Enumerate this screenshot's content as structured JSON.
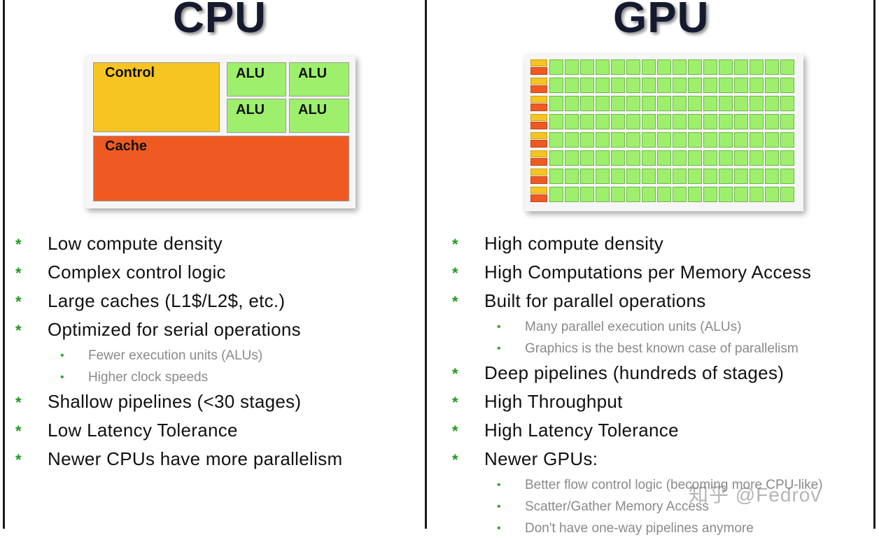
{
  "cpu": {
    "title": "CPU",
    "blocks": {
      "control": "Control",
      "alu": "ALU",
      "cache": "Cache"
    },
    "bullets": [
      {
        "text": "Low compute density",
        "level": 1
      },
      {
        "text": "Complex control logic",
        "level": 1
      },
      {
        "text": "Large caches (L1$/L2$, etc.)",
        "level": 1
      },
      {
        "text": "Optimized for serial operations",
        "level": 1
      },
      {
        "text": "Fewer execution units (ALUs)",
        "level": 2
      },
      {
        "text": "Higher clock speeds",
        "level": 2
      },
      {
        "text": "Shallow pipelines (<30 stages)",
        "level": 1
      },
      {
        "text": "Low Latency Tolerance",
        "level": 1
      },
      {
        "text": "Newer CPUs have more parallelism",
        "level": 1
      }
    ]
  },
  "gpu": {
    "title": "GPU",
    "bullets": [
      {
        "text": "High compute density",
        "level": 1
      },
      {
        "text": "High Computations per Memory Access",
        "level": 1
      },
      {
        "text": "Built for parallel operations",
        "level": 1
      },
      {
        "text": "Many parallel execution units (ALUs)",
        "level": 2
      },
      {
        "text": "Graphics is the best known case of parallelism",
        "level": 2
      },
      {
        "text": "Deep pipelines (hundreds of stages)",
        "level": 1
      },
      {
        "text": "High Throughput",
        "level": 1
      },
      {
        "text": "High Latency Tolerance",
        "level": 1
      },
      {
        "text": "Newer GPUs:",
        "level": 1
      },
      {
        "text": "Better flow control logic (becoming more CPU-like)",
        "level": 2
      },
      {
        "text": "Scatter/Gather Memory Access",
        "level": 2
      },
      {
        "text": "Don't have one-way pipelines anymore",
        "level": 2
      }
    ]
  },
  "bullet_symbols": {
    "level1": "*",
    "level2": "•"
  },
  "watermark": "知乎 @Fedrov",
  "colors": {
    "control": "#f6c522",
    "alu": "#9ef06c",
    "cache": "#ef5a23",
    "star": "#1f9a1f"
  }
}
